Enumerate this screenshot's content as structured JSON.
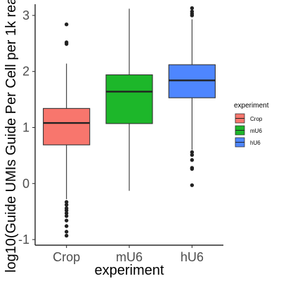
{
  "chart_data": {
    "type": "boxplot",
    "xlabel": "experiment",
    "ylabel": "log10(Guide UMIs Guide Per Cell per 1k rea",
    "ylim": [
      -1.1,
      3.2
    ],
    "yticks": [
      -1,
      0,
      1,
      2,
      3
    ],
    "grid": false,
    "legend": {
      "title": "experiment",
      "placement": "right",
      "entries": [
        "Crop",
        "mU6",
        "hU6"
      ]
    },
    "categories": [
      "Crop",
      "mU6",
      "hU6"
    ],
    "series": [
      {
        "name": "Crop",
        "color": "#F8766D",
        "whisker_low": -0.28,
        "q1": 0.69,
        "median": 1.08,
        "q3": 1.34,
        "whisker_high": 2.14,
        "outliers": [
          2.84,
          2.52,
          2.49,
          -0.33,
          -0.38,
          -0.44,
          -0.48,
          -0.53,
          -0.58,
          -0.66,
          -0.76,
          -0.86,
          -0.93
        ]
      },
      {
        "name": "mU6",
        "color": "#1DB72A",
        "whisker_low": -0.13,
        "q1": 1.07,
        "median": 1.64,
        "q3": 1.94,
        "whisker_high": 3.12,
        "outliers": []
      },
      {
        "name": "hU6",
        "color": "#4E86FF",
        "whisker_low": 0.6,
        "q1": 1.53,
        "median": 1.84,
        "q3": 2.12,
        "whisker_high": 2.93,
        "outliers": [
          3.13,
          3.07,
          3.03,
          3.0,
          0.56,
          0.51,
          0.42,
          0.28,
          0.26,
          -0.03
        ]
      }
    ]
  }
}
